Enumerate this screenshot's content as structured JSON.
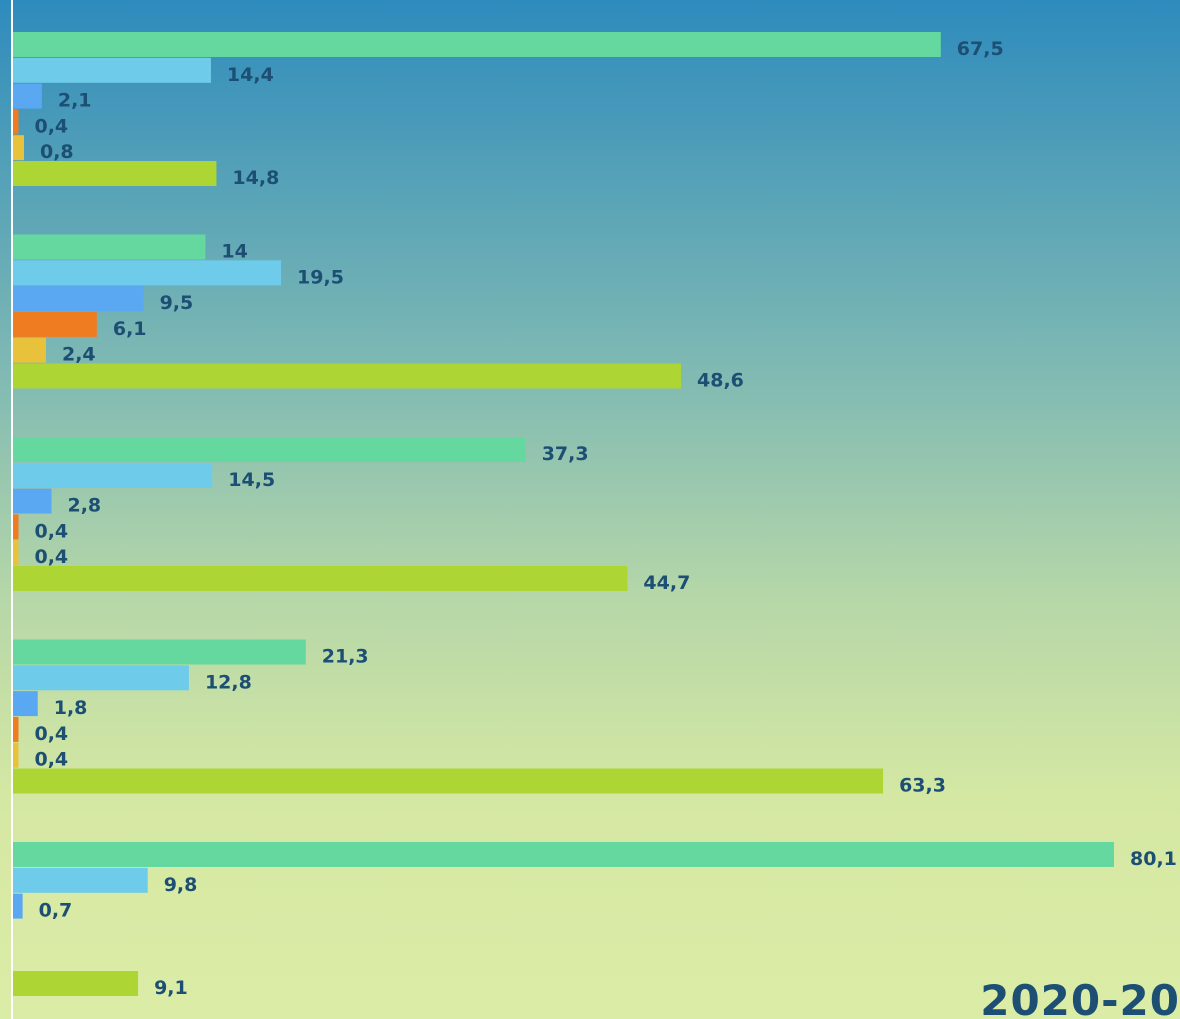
{
  "chart_data": {
    "type": "bar",
    "orientation": "horizontal",
    "xlim": [
      0,
      82
    ],
    "grid": false,
    "legend": "none",
    "value_label_color": "#1c4f73",
    "groups": [
      {
        "bars": [
          {
            "value": 67.5,
            "label": "67,5",
            "color": "#65d89f"
          },
          {
            "value": 14.4,
            "label": "14,4",
            "color": "#6fcbea"
          },
          {
            "value": 2.1,
            "label": "2,1",
            "color": "#5aa7f2"
          },
          {
            "value": 0.4,
            "label": "0,4",
            "color": "#f07c22"
          },
          {
            "value": 0.8,
            "label": "0,8",
            "color": "#e8c23a"
          },
          {
            "value": 14.8,
            "label": "14,8",
            "color": "#add534"
          }
        ]
      },
      {
        "bars": [
          {
            "value": 14,
            "label": "14",
            "color": "#65d89f"
          },
          {
            "value": 19.5,
            "label": "19,5",
            "color": "#6fcbea"
          },
          {
            "value": 9.5,
            "label": "9,5",
            "color": "#5aa7f2"
          },
          {
            "value": 6.1,
            "label": "6,1",
            "color": "#f07c22"
          },
          {
            "value": 2.4,
            "label": "2,4",
            "color": "#e8c23a"
          },
          {
            "value": 48.6,
            "label": "48,6",
            "color": "#add534"
          }
        ]
      },
      {
        "bars": [
          {
            "value": 37.3,
            "label": "37,3",
            "color": "#65d89f"
          },
          {
            "value": 14.5,
            "label": "14,5",
            "color": "#6fcbea"
          },
          {
            "value": 2.8,
            "label": "2,8",
            "color": "#5aa7f2"
          },
          {
            "value": 0.4,
            "label": "0,4",
            "color": "#f07c22"
          },
          {
            "value": 0.4,
            "label": "0,4",
            "color": "#e8c23a"
          },
          {
            "value": 44.7,
            "label": "44,7",
            "color": "#add534"
          }
        ]
      },
      {
        "bars": [
          {
            "value": 21.3,
            "label": "21,3",
            "color": "#65d89f"
          },
          {
            "value": 12.8,
            "label": "12,8",
            "color": "#6fcbea"
          },
          {
            "value": 1.8,
            "label": "1,8",
            "color": "#5aa7f2"
          },
          {
            "value": 0.4,
            "label": "0,4",
            "color": "#f07c22"
          },
          {
            "value": 0.4,
            "label": "0,4",
            "color": "#e8c23a"
          },
          {
            "value": 63.3,
            "label": "63,3",
            "color": "#add534"
          }
        ]
      },
      {
        "bars": [
          {
            "value": 80.1,
            "label": "80,1",
            "color": "#65d89f"
          },
          {
            "value": 9.8,
            "label": "9,8",
            "color": "#6fcbea"
          },
          {
            "value": 0.7,
            "label": "0,7",
            "color": "#5aa7f2"
          },
          {
            "value": null,
            "label": "",
            "color": "#f07c22"
          },
          {
            "value": null,
            "label": "",
            "color": "#e8c23a"
          },
          {
            "value": 9.1,
            "label": "9,1",
            "color": "#add534"
          }
        ]
      }
    ]
  },
  "year_label": "2020-20"
}
